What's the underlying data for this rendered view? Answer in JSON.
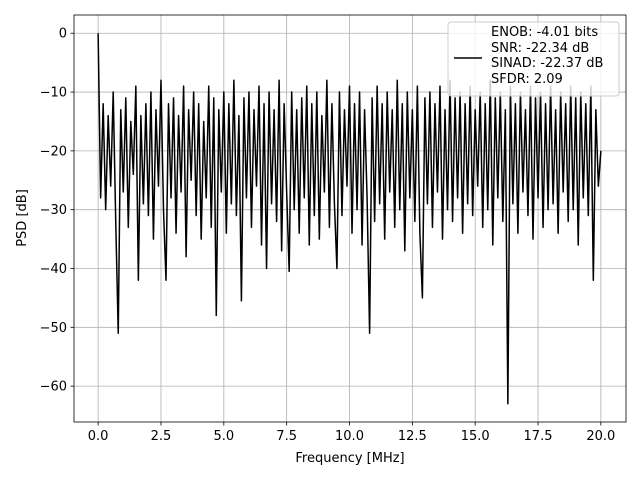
{
  "chart_data": {
    "type": "line",
    "xlabel": "Frequency [MHz]",
    "ylabel": "PSD [dB]",
    "xlim": [
      -0.96,
      21.0
    ],
    "ylim": [
      -66.1,
      3.1
    ],
    "xticks": [
      {
        "value": 0,
        "label": "0.0"
      },
      2.5,
      {
        "value": 5,
        "label": "5.0"
      },
      7.5,
      {
        "value": 10,
        "label": "10.0"
      },
      12.5,
      {
        "value": 15,
        "label": "15.0"
      },
      17.5,
      {
        "value": 20,
        "label": "20.0"
      }
    ],
    "yticks": [
      0,
      {
        "value": -10,
        "label": "−10"
      },
      {
        "value": -20,
        "label": "−20"
      },
      {
        "value": -30,
        "label": "−30"
      },
      {
        "value": -40,
        "label": "−40"
      },
      {
        "value": -50,
        "label": "−50"
      },
      {
        "value": -60,
        "label": "−60"
      }
    ],
    "grid": true,
    "legend": "upper right",
    "x": [
      0,
      0.1,
      0.2,
      0.3,
      0.4,
      0.5,
      0.6,
      0.7,
      0.8,
      0.9,
      1,
      1.1,
      1.2,
      1.3,
      1.4,
      1.5,
      1.6,
      1.7,
      1.8,
      1.9,
      2,
      2.1,
      2.2,
      2.3,
      2.4,
      2.5,
      2.6,
      2.7,
      2.8,
      2.9,
      3,
      3.1,
      3.2,
      3.3,
      3.4,
      3.5,
      3.6,
      3.7,
      3.8,
      3.9,
      4,
      4.1,
      4.2,
      4.3,
      4.4,
      4.5,
      4.6,
      4.7,
      4.8,
      4.9,
      5,
      5.1,
      5.2,
      5.3,
      5.4,
      5.5,
      5.6,
      5.7,
      5.8,
      5.9,
      6,
      6.1,
      6.2,
      6.3,
      6.4,
      6.5,
      6.6,
      6.7,
      6.8,
      6.9,
      7,
      7.1,
      7.2,
      7.3,
      7.4,
      7.5,
      7.6,
      7.7,
      7.8,
      7.9,
      8,
      8.1,
      8.2,
      8.3,
      8.4,
      8.5,
      8.6,
      8.7,
      8.8,
      8.9,
      9,
      9.1,
      9.2,
      9.3,
      9.4,
      9.5,
      9.6,
      9.7,
      9.8,
      9.9,
      10,
      10.1,
      10.2,
      10.3,
      10.4,
      10.5,
      10.6,
      10.7,
      10.8,
      10.9,
      11,
      11.1,
      11.2,
      11.3,
      11.4,
      11.5,
      11.6,
      11.7,
      11.8,
      11.9,
      12,
      12.1,
      12.2,
      12.3,
      12.4,
      12.5,
      12.6,
      12.7,
      12.8,
      12.9,
      13,
      13.1,
      13.2,
      13.3,
      13.4,
      13.5,
      13.6,
      13.7,
      13.8,
      13.9,
      14,
      14.1,
      14.2,
      14.3,
      14.4,
      14.5,
      14.6,
      14.7,
      14.8,
      14.9,
      15,
      15.1,
      15.2,
      15.3,
      15.4,
      15.5,
      15.6,
      15.7,
      15.8,
      15.9,
      16,
      16.1,
      16.2,
      16.3,
      16.4,
      16.5,
      16.6,
      16.7,
      16.8,
      16.9,
      17,
      17.1,
      17.2,
      17.3,
      17.4,
      17.5,
      17.6,
      17.7,
      17.8,
      17.9,
      18,
      18.1,
      18.2,
      18.3,
      18.4,
      18.5,
      18.6,
      18.7,
      18.8,
      18.9,
      19,
      19.1,
      19.2,
      19.3,
      19.4,
      19.5,
      19.6,
      19.7,
      19.8,
      19.9,
      20
    ],
    "series": [
      {
        "name": "ENOB: -4.01 bits\nSNR: -22.34 dB\nSINAD: -22.37 dB\nSFDR: 2.09",
        "color": "#000000",
        "values": [
          0,
          -28,
          -12,
          -30,
          -14,
          -26,
          -10,
          -32,
          -51,
          -13,
          -27,
          -11,
          -33,
          -15,
          -24,
          -9,
          -42,
          -14,
          -29,
          -12,
          -31,
          -10,
          -35,
          -13,
          -26,
          -8,
          -30,
          -42,
          -12,
          -28,
          -11,
          -34,
          -14,
          -27,
          -9,
          -38,
          -13,
          -25,
          -10,
          -31,
          -12,
          -35,
          -15,
          -28,
          -9,
          -33,
          -11,
          -48,
          -13,
          -27,
          -10,
          -34,
          -12,
          -29,
          -8,
          -31,
          -14,
          -45.5,
          -11,
          -28,
          -10,
          -33,
          -13,
          -26,
          -9,
          -36,
          -12,
          -40,
          -10,
          -29,
          -13,
          -32,
          -8,
          -37,
          -12,
          -27,
          -40.5,
          -10,
          -30,
          -13,
          -34,
          -11,
          -28,
          -9,
          -36,
          -12,
          -31,
          -10,
          -35,
          -14,
          -27,
          -8,
          -33,
          -12,
          -29,
          -40,
          -10,
          -31,
          -13,
          -26,
          -9,
          -34,
          -12,
          -30,
          -10,
          -36,
          -13,
          -28,
          -51,
          -11,
          -32,
          -9,
          -29,
          -12,
          -35,
          -10,
          -27,
          -13,
          -33,
          -8,
          -30,
          -12,
          -37,
          -10,
          -28,
          -13,
          -32,
          -9,
          -34,
          -45,
          -11,
          -29,
          -10,
          -33,
          -12,
          -27,
          -9,
          -35,
          -13,
          -30,
          -8,
          -32,
          -11,
          -28,
          -10,
          -34,
          -12,
          -29,
          -9,
          -31,
          -13,
          -26,
          -10,
          -33,
          -12,
          -30,
          -8,
          -36,
          -11,
          -28,
          -10,
          -32,
          -13,
          -63,
          -9,
          -29,
          -12,
          -34,
          -10,
          -27,
          -13,
          -31,
          -9,
          -35,
          -11,
          -28,
          -10,
          -33,
          -12,
          -30,
          -9,
          -29,
          -13,
          -34,
          -10,
          -27,
          -12,
          -32,
          -9,
          -30,
          -11,
          -36,
          -10,
          -28,
          -12,
          -31,
          -9,
          -42,
          -13,
          -26,
          -20
        ]
      }
    ]
  }
}
